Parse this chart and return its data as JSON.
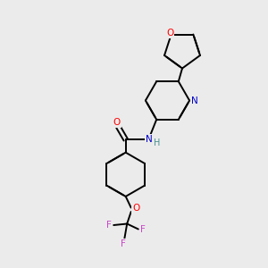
{
  "background_color": "#ebebeb",
  "bond_color": "#000000",
  "atom_colors": {
    "O": "#ff0000",
    "N": "#0000cc",
    "F": "#cc44cc",
    "H": "#4a9090"
  },
  "figsize": [
    3.0,
    3.0
  ],
  "dpi": 100
}
